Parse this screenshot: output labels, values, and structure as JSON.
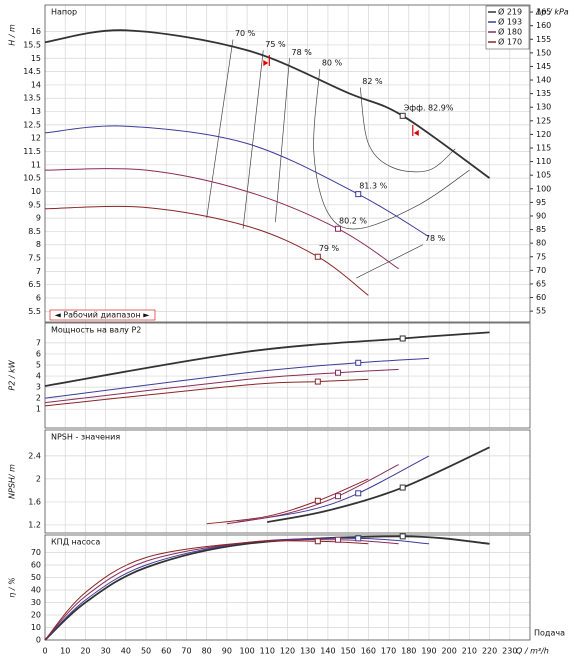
{
  "chart_data": [
    {
      "type": "line",
      "title": "Напор",
      "ylabel": "H / m",
      "y2label": "Δp / kPa",
      "xlim": [
        0,
        240
      ],
      "ylim": [
        5.1,
        17.0
      ],
      "y2lim": [
        51,
        167.6
      ],
      "yticks": [
        5.5,
        6,
        6.5,
        7,
        7.5,
        8,
        8.5,
        9,
        9.5,
        10,
        10.5,
        11,
        11.5,
        12,
        12.5,
        13,
        13.5,
        14,
        14.5,
        15,
        15.5,
        16
      ],
      "y2ticks": [
        55,
        60,
        65,
        70,
        75,
        80,
        85,
        90,
        95,
        100,
        105,
        110,
        115,
        120,
        125,
        130,
        135,
        140,
        145,
        150,
        155,
        160,
        165
      ],
      "grid": true,
      "legend": "upper right",
      "series": [
        {
          "name": "Ø 219",
          "color": "#333333",
          "x": [
            0,
            40,
            100,
            150,
            177,
            220
          ],
          "values": [
            15.6,
            16.05,
            15.3,
            13.7,
            12.84,
            10.5
          ]
        },
        {
          "name": "Ø 193",
          "color": "#3b3b9a",
          "x": [
            0,
            40,
            100,
            155,
            190
          ],
          "values": [
            12.2,
            12.45,
            11.8,
            9.9,
            8.3
          ]
        },
        {
          "name": "Ø 180",
          "color": "#8b2a5a",
          "x": [
            0,
            50,
            100,
            145,
            175
          ],
          "values": [
            10.8,
            10.8,
            10.0,
            8.6,
            7.1
          ]
        },
        {
          "name": "Ø 170",
          "color": "#8b2525",
          "x": [
            0,
            50,
            100,
            135,
            160
          ],
          "values": [
            9.35,
            9.4,
            8.7,
            7.55,
            6.1
          ]
        }
      ],
      "markers": {
        "x": [
          177,
          155,
          145,
          135
        ],
        "values": [
          12.84,
          9.9,
          8.6,
          7.55
        ]
      },
      "efficiency_labels": [
        "Эфф.  82.9%",
        "81.3 %",
        "80.2 %",
        "79 %"
      ],
      "isolines": [
        {
          "name": "70 %",
          "x": [
            93,
            80
          ],
          "values": [
            15.7,
            9.0
          ]
        },
        {
          "name": "75 %",
          "x": [
            108,
            98
          ],
          "values": [
            15.3,
            8.6
          ]
        },
        {
          "name": "78 %",
          "x": [
            121,
            114
          ],
          "values": [
            15.0,
            8.85
          ]
        },
        {
          "name": "80 %",
          "x": [
            136,
            133,
            140,
            155,
            185,
            210
          ],
          "values": [
            14.6,
            11.5,
            9.2,
            8.6,
            9.5,
            10.8
          ]
        },
        {
          "name": "82 %",
          "x": [
            156,
            160,
            172,
            190,
            203
          ],
          "values": [
            13.9,
            11.8,
            10.9,
            10.8,
            11.6
          ]
        },
        {
          "name": "78 %",
          "x": [
            187,
            154
          ],
          "values": [
            8.0,
            6.75
          ]
        }
      ],
      "operating_range": [
        111,
        182
      ],
      "range_label": "◄ Рабочий диапазон ►"
    },
    {
      "type": "line",
      "title": "Мощность на валу P2",
      "ylabel": "P2 / kW",
      "xlim": [
        0,
        240
      ],
      "ylim": [
        -0.7,
        8.8
      ],
      "yticks": [
        1,
        2,
        3,
        4,
        5,
        6,
        7
      ],
      "grid": true,
      "series": [
        {
          "name": "Ø 219",
          "color": "#333333",
          "x": [
            0,
            100,
            177,
            220
          ],
          "values": [
            3.1,
            6.2,
            7.4,
            7.95
          ]
        },
        {
          "name": "Ø 193",
          "color": "#3b3b9a",
          "x": [
            0,
            100,
            155,
            190
          ],
          "values": [
            2.0,
            4.3,
            5.2,
            5.6
          ]
        },
        {
          "name": "Ø 180",
          "color": "#8b2a5a",
          "x": [
            0,
            100,
            145,
            175
          ],
          "values": [
            1.6,
            3.7,
            4.3,
            4.6
          ]
        },
        {
          "name": "Ø 170",
          "color": "#8b2525",
          "x": [
            0,
            100,
            135,
            160
          ],
          "values": [
            1.3,
            3.2,
            3.5,
            3.7
          ]
        }
      ],
      "markers": {
        "x": [
          177,
          155,
          145,
          135
        ],
        "values": [
          7.4,
          5.2,
          4.3,
          3.5
        ]
      }
    },
    {
      "type": "line",
      "title": "NPSH - значения",
      "ylabel": "NPSH/ m",
      "xlim": [
        0,
        240
      ],
      "ylim": [
        1.06,
        2.85
      ],
      "yticks": [
        1.2,
        1.6,
        2,
        2.4
      ],
      "grid": true,
      "series": [
        {
          "name": "Ø 219",
          "color": "#333333",
          "x": [
            110,
            140,
            177,
            220
          ],
          "values": [
            1.25,
            1.45,
            1.85,
            2.55
          ]
        },
        {
          "name": "Ø 193",
          "color": "#3b3b9a",
          "x": [
            95,
            130,
            155,
            190
          ],
          "values": [
            1.25,
            1.45,
            1.75,
            2.4
          ]
        },
        {
          "name": "Ø 180",
          "color": "#8b2a5a",
          "x": [
            90,
            120,
            145,
            175
          ],
          "values": [
            1.22,
            1.4,
            1.7,
            2.25
          ]
        },
        {
          "name": "Ø 170",
          "color": "#8b2525",
          "x": [
            80,
            110,
            135,
            160
          ],
          "values": [
            1.22,
            1.35,
            1.62,
            2.0
          ]
        }
      ],
      "markers": {
        "x": [
          177,
          155,
          145,
          135
        ],
        "values": [
          1.85,
          1.75,
          1.7,
          1.62
        ]
      }
    },
    {
      "type": "line",
      "title": "КПД насоса",
      "ylabel": "η / %",
      "xlabel": "Q / m³/h",
      "xnote": "Подача",
      "xlim": [
        0,
        240
      ],
      "ylim": [
        0,
        84
      ],
      "yticks": [
        0,
        10,
        20,
        30,
        40,
        50,
        60,
        70
      ],
      "xticks": [
        0,
        10,
        20,
        30,
        40,
        50,
        60,
        70,
        80,
        90,
        100,
        110,
        120,
        130,
        140,
        150,
        160,
        170,
        180,
        190,
        200,
        210,
        220,
        230
      ],
      "grid": true,
      "series": [
        {
          "name": "Ø 219",
          "color": "#333333",
          "x": [
            0,
            20,
            50,
            100,
            177,
            220
          ],
          "values": [
            0,
            30,
            58,
            77,
            82.9,
            77
          ]
        },
        {
          "name": "Ø 193",
          "color": "#3b3b9a",
          "x": [
            0,
            20,
            50,
            100,
            155,
            190
          ],
          "values": [
            0,
            32,
            60,
            78,
            81.3,
            77
          ]
        },
        {
          "name": "Ø 180",
          "color": "#8b2a5a",
          "x": [
            0,
            20,
            50,
            100,
            145,
            175
          ],
          "values": [
            0,
            35,
            63,
            78,
            80.2,
            77
          ]
        },
        {
          "name": "Ø 170",
          "color": "#8b2525",
          "x": [
            0,
            20,
            50,
            100,
            135,
            160
          ],
          "values": [
            0,
            38,
            66,
            78,
            79,
            77
          ]
        }
      ],
      "markers": {
        "x": [
          177,
          155,
          145,
          135
        ],
        "values": [
          82.9,
          81.3,
          80.2,
          79
        ]
      }
    }
  ]
}
